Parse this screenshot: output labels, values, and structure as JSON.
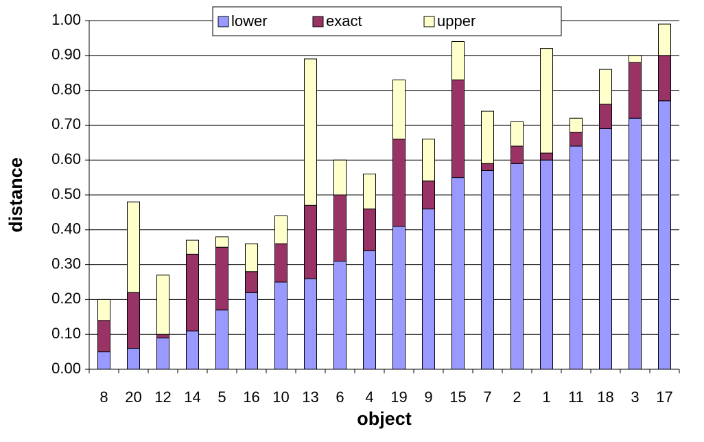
{
  "chart_data": {
    "type": "stacked-bar",
    "x_label": "object",
    "y_label": "distance",
    "categories": [
      "8",
      "20",
      "12",
      "14",
      "5",
      "16",
      "10",
      "13",
      "6",
      "4",
      "19",
      "9",
      "15",
      "7",
      "2",
      "1",
      "11",
      "18",
      "3",
      "17"
    ],
    "series": [
      {
        "name": "lower",
        "color": "#9999ff",
        "values": [
          0.05,
          0.06,
          0.09,
          0.11,
          0.17,
          0.22,
          0.25,
          0.26,
          0.31,
          0.34,
          0.41,
          0.46,
          0.55,
          0.57,
          0.59,
          0.6,
          0.64,
          0.69,
          0.72,
          0.77
        ]
      },
      {
        "name": "exact",
        "color": "#993366",
        "values": [
          0.09,
          0.16,
          0.01,
          0.22,
          0.18,
          0.06,
          0.11,
          0.21,
          0.19,
          0.12,
          0.25,
          0.08,
          0.28,
          0.02,
          0.05,
          0.02,
          0.04,
          0.07,
          0.16,
          0.13
        ]
      },
      {
        "name": "upper",
        "color": "#ffffcc",
        "values": [
          0.06,
          0.26,
          0.17,
          0.04,
          0.03,
          0.08,
          0.08,
          0.42,
          0.1,
          0.1,
          0.17,
          0.12,
          0.11,
          0.15,
          0.07,
          0.3,
          0.04,
          0.1,
          0.02,
          0.09
        ]
      }
    ],
    "ylim": [
      0,
      1
    ],
    "yticks": [
      {
        "value": 0,
        "label": "0.00"
      },
      {
        "value": 0.1,
        "label": "0.10"
      },
      {
        "value": 0.2,
        "label": "0.20"
      },
      {
        "value": 0.3,
        "label": "0.30"
      },
      {
        "value": 0.4,
        "label": "0.40"
      },
      {
        "value": 0.5,
        "label": "0.50"
      },
      {
        "value": 0.6,
        "label": "0.60"
      },
      {
        "value": 0.7,
        "label": "0.70"
      },
      {
        "value": 0.8,
        "label": "0.80"
      },
      {
        "value": 0.9,
        "label": "0.90"
      },
      {
        "value": 1,
        "label": "1.00"
      }
    ],
    "grid": true,
    "legend": "top"
  }
}
